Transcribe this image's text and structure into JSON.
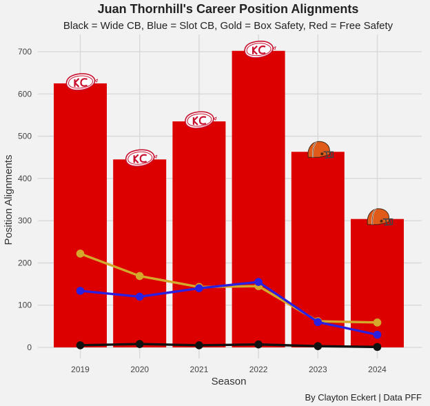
{
  "chart_data": {
    "type": "bar",
    "title": "Juan Thornhill's Career Position Alignments",
    "subtitle": "Black = Wide CB, Blue = Slot CB, Gold = Box Safety, Red = Free Safety",
    "xlabel": "Season",
    "ylabel": "Position Alignments",
    "caption": "By Clayton Eckert | Data PFF",
    "ylim": [
      0,
      700
    ],
    "yticks": [
      0,
      100,
      200,
      300,
      400,
      500,
      600,
      700
    ],
    "categories": [
      "2019",
      "2020",
      "2021",
      "2022",
      "2023",
      "2024"
    ],
    "teams": [
      "chiefs",
      "chiefs",
      "chiefs",
      "chiefs",
      "browns",
      "browns"
    ],
    "bars": {
      "name": "Free Safety",
      "color": "#dd0000",
      "values": [
        625,
        445,
        535,
        702,
        463,
        304
      ]
    },
    "series": [
      {
        "name": "Box Safety",
        "color": "#d4a92b",
        "values": [
          222,
          169,
          143,
          145,
          62,
          59
        ]
      },
      {
        "name": "Slot CB",
        "color": "#2b1fe0",
        "values": [
          134,
          120,
          140,
          155,
          60,
          30
        ]
      },
      {
        "name": "Wide CB",
        "color": "#111111",
        "values": [
          5,
          8,
          5,
          7,
          3,
          1
        ]
      }
    ],
    "grid": true,
    "legend": "none"
  }
}
